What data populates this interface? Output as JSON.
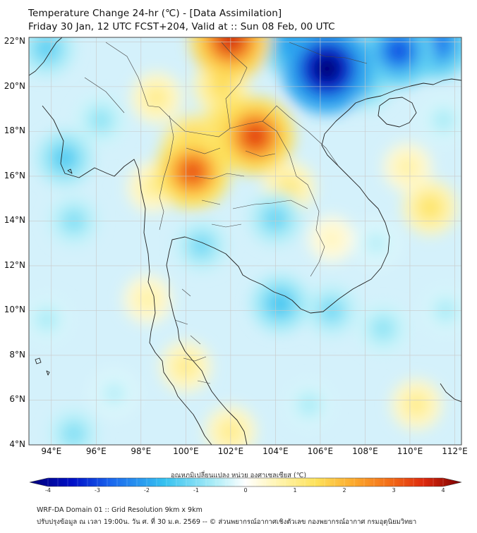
{
  "header": {
    "title_line1": "Temperature Change 24-hr (℃) - [Data Assimilation]",
    "title_line2": "Friday 30 Jan, 12 UTC FCST+204, Valid at :: Sun 08 Feb, 00 UTC"
  },
  "map": {
    "lat_labels": [
      "22°N",
      "20°N",
      "18°N",
      "16°N",
      "14°N",
      "12°N",
      "10°N",
      "8°N",
      "6°N",
      "4°N"
    ],
    "lon_labels": [
      "94°E",
      "96°E",
      "98°E",
      "100°E",
      "102°E",
      "104°E",
      "106°E",
      "108°E",
      "110°E",
      "112°E"
    ],
    "lat_range": [
      4,
      22.2
    ],
    "lon_range": [
      93,
      112.3
    ],
    "anomalies": [
      {
        "lon": 102.0,
        "lat": 22.1,
        "value": 3.2
      },
      {
        "lon": 103.1,
        "lat": 17.8,
        "value": 3.0
      },
      {
        "lon": 102.3,
        "lat": 18.0,
        "value": 2.4
      },
      {
        "lon": 100.3,
        "lat": 16.2,
        "value": 2.8
      },
      {
        "lon": 100.4,
        "lat": 17.3,
        "value": 2.0
      },
      {
        "lon": 101.6,
        "lat": 20.0,
        "value": 1.3
      },
      {
        "lon": 104.6,
        "lat": 15.5,
        "value": 1.0
      },
      {
        "lon": 98.7,
        "lat": 19.5,
        "value": 0.9
      },
      {
        "lon": 98.5,
        "lat": 15.5,
        "value": 0.8
      },
      {
        "lon": 110.9,
        "lat": 14.6,
        "value": 1.2
      },
      {
        "lon": 109.9,
        "lat": 16.4,
        "value": 0.7
      },
      {
        "lon": 100.0,
        "lat": 7.5,
        "value": 0.9
      },
      {
        "lon": 98.3,
        "lat": 10.5,
        "value": 0.7
      },
      {
        "lon": 102.0,
        "lat": 4.6,
        "value": 0.9
      },
      {
        "lon": 110.3,
        "lat": 5.8,
        "value": 0.9
      },
      {
        "lon": 106.5,
        "lat": 13.2,
        "value": 0.5
      },
      {
        "lon": 106.3,
        "lat": 20.8,
        "value": -4.0
      },
      {
        "lon": 109.5,
        "lat": 21.6,
        "value": -2.6
      },
      {
        "lon": 111.2,
        "lat": 21.9,
        "value": -2.4
      },
      {
        "lon": 104.7,
        "lat": 21.9,
        "value": -2.0
      },
      {
        "lon": 108.0,
        "lat": 20.2,
        "value": -1.3
      },
      {
        "lon": 93.8,
        "lat": 21.7,
        "value": -1.2
      },
      {
        "lon": 94.6,
        "lat": 16.8,
        "value": -1.3
      },
      {
        "lon": 95.0,
        "lat": 14.0,
        "value": -0.9
      },
      {
        "lon": 96.2,
        "lat": 18.5,
        "value": -0.8
      },
      {
        "lon": 104.0,
        "lat": 14.1,
        "value": -1.1
      },
      {
        "lon": 104.2,
        "lat": 10.3,
        "value": -1.4
      },
      {
        "lon": 100.7,
        "lat": 12.9,
        "value": -1.0
      },
      {
        "lon": 106.5,
        "lat": 10.0,
        "value": -1.0
      },
      {
        "lon": 108.8,
        "lat": 9.2,
        "value": -0.8
      },
      {
        "lon": 95.0,
        "lat": 4.5,
        "value": -0.9
      },
      {
        "lon": 105.5,
        "lat": 5.8,
        "value": -0.6
      },
      {
        "lon": 108.5,
        "lat": 13.0,
        "value": -0.5
      },
      {
        "lon": 111.6,
        "lat": 10.0,
        "value": -0.6
      },
      {
        "lon": 111.5,
        "lat": 18.5,
        "value": -0.6
      },
      {
        "lon": 93.8,
        "lat": 9.6,
        "value": -0.6
      },
      {
        "lon": 96.8,
        "lat": 6.3,
        "value": -0.5
      }
    ],
    "colors": {
      "coast": "#222222",
      "grid": "#c8c8c8",
      "border": "#555555"
    }
  },
  "colorbar": {
    "label": "อุณหภูมิเปลี่ยนแปลง  หน่วย องศาเซลเซียส (℃)",
    "ticks": [
      "-4",
      "-3",
      "-2",
      "-1",
      "0",
      "1",
      "2",
      "3",
      "4"
    ],
    "range": [
      -4,
      4
    ],
    "stops": [
      {
        "v": -4.0,
        "c": "#00007a"
      },
      {
        "v": -3.2,
        "c": "#0010c8"
      },
      {
        "v": -2.5,
        "c": "#1a66ee"
      },
      {
        "v": -1.5,
        "c": "#36c2f0"
      },
      {
        "v": -0.6,
        "c": "#a9ecf7"
      },
      {
        "v": 0.0,
        "c": "#ffffff"
      },
      {
        "v": 0.6,
        "c": "#fff4b0"
      },
      {
        "v": 1.3,
        "c": "#fde25c"
      },
      {
        "v": 2.0,
        "c": "#fcaa2e"
      },
      {
        "v": 2.7,
        "c": "#f26a18"
      },
      {
        "v": 3.3,
        "c": "#de2a0e"
      },
      {
        "v": 4.0,
        "c": "#7a0000"
      }
    ]
  },
  "footer": {
    "line1": "WRF-DA Domain 01 :: Grid Resolution 9km x 9km",
    "line2": "ปรับปรุงข้อมูล ณ เวลา 19:00น. วัน ศ. ที่ 30 ม.ค. 2569 -- © ส่วนพยากรณ์อากาศเชิงตัวเลข กองพยากรณ์อากาศ กรมอุตุนิยมวิทยา"
  }
}
